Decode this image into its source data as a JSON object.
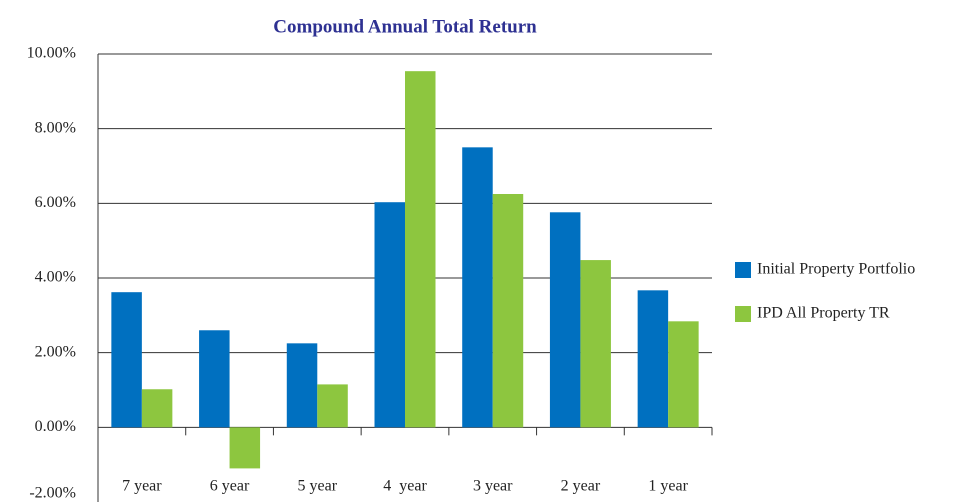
{
  "chart_data": {
    "type": "bar",
    "title": "Compound Annual Total Return",
    "categories": [
      "7 year",
      "6 year",
      "5 year",
      "4  year",
      "3 year",
      "2 year",
      "1 year"
    ],
    "series": [
      {
        "name": "Initial Property Portfolio",
        "color": "#0070c0",
        "values": [
          3.62,
          2.6,
          2.25,
          6.03,
          7.5,
          5.76,
          3.67
        ]
      },
      {
        "name": "IPD All Property TR",
        "color": "#8dc63f",
        "values": [
          1.02,
          -1.1,
          1.15,
          9.54,
          6.25,
          4.48,
          2.84
        ]
      }
    ],
    "ylim": [
      -2,
      10
    ],
    "yticks": [
      {
        "value": -2,
        "label": "-2.00%"
      },
      {
        "value": 0,
        "label": "0.00%"
      },
      {
        "value": 2,
        "label": "2.00%"
      },
      {
        "value": 4,
        "label": "4.00%"
      },
      {
        "value": 6,
        "label": "6.00%"
      },
      {
        "value": 8,
        "label": "8.00%"
      },
      {
        "value": 10,
        "label": "10.00%"
      }
    ],
    "grid": true,
    "legend": "right"
  }
}
